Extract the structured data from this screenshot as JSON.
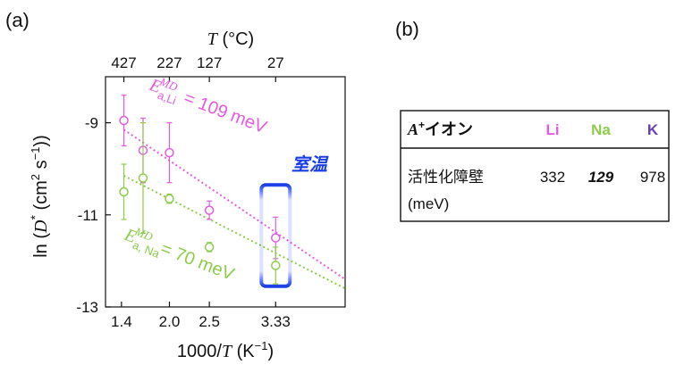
{
  "panel_a_label": "(a)",
  "panel_b_label": "(b)",
  "chart_data": {
    "type": "scatter",
    "xlabel": "1000/T (K⁻¹)",
    "ylabel": "ln (D* (cm² s⁻¹))",
    "top_axis_label": "T (°C)",
    "xlim": [
      1.2,
      4.2
    ],
    "ylim": [
      -13,
      -8
    ],
    "x_ticks": [
      1.4,
      2.0,
      2.5,
      3.33
    ],
    "x_tick_labels": [
      "1.4",
      "2.0",
      "2.5",
      "3.33"
    ],
    "y_ticks": [
      -9,
      -11,
      -13
    ],
    "y_tick_labels": [
      "-9",
      "-11",
      "-13"
    ],
    "top_ticks": [
      {
        "label": "427",
        "x": 1.43
      },
      {
        "label": "227",
        "x": 2.0
      },
      {
        "label": "127",
        "x": 2.5
      },
      {
        "label": "27",
        "x": 3.33
      }
    ],
    "grid": false,
    "series": [
      {
        "name": "Li",
        "color": "#e55be0",
        "x": [
          1.43,
          1.67,
          2.0,
          2.5,
          3.33
        ],
        "y": [
          -8.95,
          -9.6,
          -9.65,
          -10.9,
          -11.5
        ],
        "err": [
          0.55,
          0.7,
          0.65,
          0.2,
          0.45
        ],
        "fit": {
          "x": [
            1.43,
            4.2
          ],
          "y": [
            -9.15,
            -12.4
          ]
        },
        "annotation": "E_a,Li^MD = 109 meV"
      },
      {
        "name": "Na",
        "color": "#8ccc4a",
        "x": [
          1.43,
          1.67,
          2.0,
          2.5,
          3.33
        ],
        "y": [
          -10.5,
          -10.2,
          -10.65,
          -11.7,
          -12.1
        ],
        "err": [
          0.6,
          1.2,
          0.1,
          0.1,
          0.4
        ],
        "fit": {
          "x": [
            1.43,
            4.2
          ],
          "y": [
            -10.15,
            -12.6
          ]
        },
        "annotation": "E_a,Na^MD = 70 meV"
      }
    ],
    "highlight": {
      "label": "室温",
      "color": "#1a3ee8",
      "x": 3.33,
      "y_range": [
        -12.55,
        -10.35
      ]
    }
  },
  "table": {
    "header": {
      "ion_prefix": "A",
      "ion_sup": "+",
      "ion_rest": "イオン",
      "cols": [
        {
          "label": "Li",
          "color": "#e55be0"
        },
        {
          "label": "Na",
          "color": "#8ccc4a"
        },
        {
          "label": "K",
          "color": "#6a3fb5"
        }
      ]
    },
    "row": {
      "label_line1": "活性化障壁",
      "label_line2": "(meV)",
      "values": [
        {
          "text": "332",
          "color": "#111111",
          "emph": false
        },
        {
          "text": "129",
          "color": "#1a3ee8",
          "emph": true
        },
        {
          "text": "978",
          "color": "#111111",
          "emph": false
        }
      ]
    }
  }
}
